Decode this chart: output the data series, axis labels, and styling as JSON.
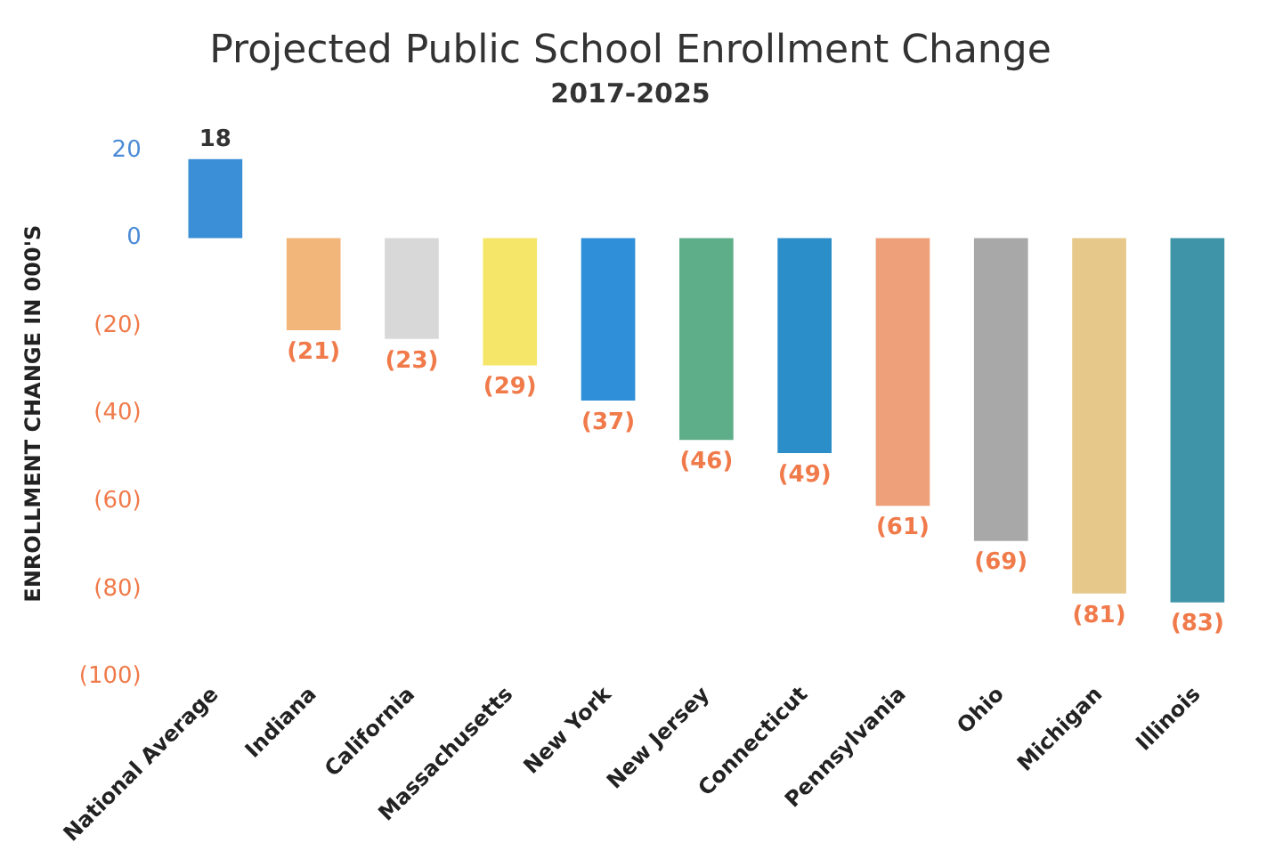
{
  "chart_data": {
    "type": "bar",
    "title": "Projected Public School Enrollment Change",
    "subtitle": "2017-2025",
    "ylabel": "ENROLLMENT CHANGE IN 000'S",
    "categories": [
      "National Average",
      "Indiana",
      "California",
      "Massachusetts",
      "New York",
      "New Jersey",
      "Connecticut",
      "Pennsylvania",
      "Ohio",
      "Michigan",
      "Illinois"
    ],
    "values": [
      18,
      -21,
      -23,
      -29,
      -37,
      -46,
      -49,
      -61,
      -69,
      -81,
      -83
    ],
    "colors": [
      "#3a8fd6",
      "#f2b57a",
      "#d8d8d8",
      "#f5e66a",
      "#2f8fd8",
      "#5fae8a",
      "#2b8ec8",
      "#eda07a",
      "#a8a8a8",
      "#e6c98a",
      "#3f94a8"
    ],
    "value_labels": [
      "18",
      "(21)",
      "(23)",
      "(29)",
      "(37)",
      "(46)",
      "(49)",
      "(61)",
      "(69)",
      "(81)",
      "(83)"
    ],
    "ylim": [
      -100,
      20
    ],
    "yticks": [
      20,
      0,
      {
        "value": -20,
        "label": "(20)"
      },
      {
        "value": -40,
        "label": "(40)"
      },
      {
        "value": -60,
        "label": "(60)"
      },
      {
        "value": -80,
        "label": "(80)"
      },
      {
        "value": -100,
        "label": "(100)"
      }
    ],
    "grid": false,
    "legend": false
  }
}
